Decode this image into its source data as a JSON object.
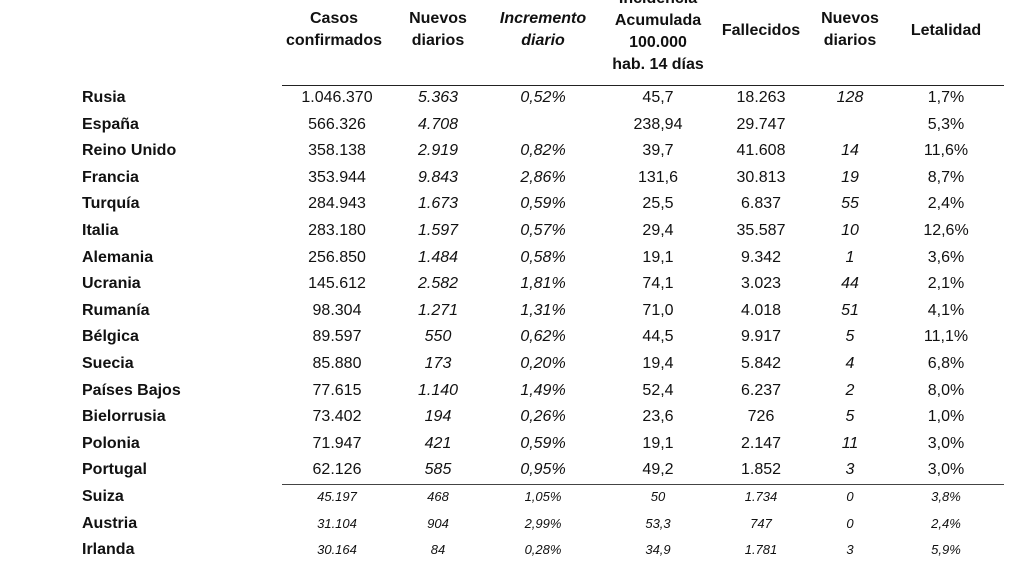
{
  "table": {
    "headers": {
      "casos": [
        "Casos",
        "confirmados"
      ],
      "nuevos": [
        "Nuevos",
        "diarios"
      ],
      "incremento": [
        "Incremento",
        "diario"
      ],
      "incidencia": [
        "Incidencia",
        "Acumulada",
        "100.000",
        "hab. 14 días"
      ],
      "fallecidos": [
        "Fallecidos"
      ],
      "nuevos_fallecidos": [
        "Nuevos",
        "diarios"
      ],
      "letalidad": [
        "Letalidad"
      ]
    },
    "rows": [
      {
        "country": "Rusia",
        "casos": "1.046.370",
        "nuevos": "5.363",
        "incremento": "0,52%",
        "incidencia": "45,7",
        "fallecidos": "18.263",
        "nuevos_fallecidos": "128",
        "letalidad": "1,7%"
      },
      {
        "country": "España",
        "casos": "566.326",
        "nuevos": "4.708",
        "incremento": "",
        "incidencia": "238,94",
        "fallecidos": "29.747",
        "nuevos_fallecidos": "",
        "letalidad": "5,3%"
      },
      {
        "country": "Reino Unido",
        "casos": "358.138",
        "nuevos": "2.919",
        "incremento": "0,82%",
        "incidencia": "39,7",
        "fallecidos": "41.608",
        "nuevos_fallecidos": "14",
        "letalidad": "11,6%"
      },
      {
        "country": "Francia",
        "casos": "353.944",
        "nuevos": "9.843",
        "incremento": "2,86%",
        "incidencia": "131,6",
        "fallecidos": "30.813",
        "nuevos_fallecidos": "19",
        "letalidad": "8,7%"
      },
      {
        "country": "Turquía",
        "casos": "284.943",
        "nuevos": "1.673",
        "incremento": "0,59%",
        "incidencia": "25,5",
        "fallecidos": "6.837",
        "nuevos_fallecidos": "55",
        "letalidad": "2,4%"
      },
      {
        "country": "Italia",
        "casos": "283.180",
        "nuevos": "1.597",
        "incremento": "0,57%",
        "incidencia": "29,4",
        "fallecidos": "35.587",
        "nuevos_fallecidos": "10",
        "letalidad": "12,6%"
      },
      {
        "country": "Alemania",
        "casos": "256.850",
        "nuevos": "1.484",
        "incremento": "0,58%",
        "incidencia": "19,1",
        "fallecidos": "9.342",
        "nuevos_fallecidos": "1",
        "letalidad": "3,6%"
      },
      {
        "country": "Ucrania",
        "casos": "145.612",
        "nuevos": "2.582",
        "incremento": "1,81%",
        "incidencia": "74,1",
        "fallecidos": "3.023",
        "nuevos_fallecidos": "44",
        "letalidad": "2,1%"
      },
      {
        "country": "Rumanía",
        "casos": "98.304",
        "nuevos": "1.271",
        "incremento": "1,31%",
        "incidencia": "71,0",
        "fallecidos": "4.018",
        "nuevos_fallecidos": "51",
        "letalidad": "4,1%"
      },
      {
        "country": "Bélgica",
        "casos": "89.597",
        "nuevos": "550",
        "incremento": "0,62%",
        "incidencia": "44,5",
        "fallecidos": "9.917",
        "nuevos_fallecidos": "5",
        "letalidad": "11,1%"
      },
      {
        "country": "Suecia",
        "casos": "85.880",
        "nuevos": "173",
        "incremento": "0,20%",
        "incidencia": "19,4",
        "fallecidos": "5.842",
        "nuevos_fallecidos": "4",
        "letalidad": "6,8%"
      },
      {
        "country": "Países Bajos",
        "casos": "77.615",
        "nuevos": "1.140",
        "incremento": "1,49%",
        "incidencia": "52,4",
        "fallecidos": "6.237",
        "nuevos_fallecidos": "2",
        "letalidad": "8,0%"
      },
      {
        "country": "Bielorrusia",
        "casos": "73.402",
        "nuevos": "194",
        "incremento": "0,26%",
        "incidencia": "23,6",
        "fallecidos": "726",
        "nuevos_fallecidos": "5",
        "letalidad": "1,0%"
      },
      {
        "country": "Polonia",
        "casos": "71.947",
        "nuevos": "421",
        "incremento": "0,59%",
        "incidencia": "19,1",
        "fallecidos": "2.147",
        "nuevos_fallecidos": "11",
        "letalidad": "3,0%"
      },
      {
        "country": "Portugal",
        "casos": "62.126",
        "nuevos": "585",
        "incremento": "0,95%",
        "incidencia": "49,2",
        "fallecidos": "1.852",
        "nuevos_fallecidos": "3",
        "letalidad": "3,0%"
      },
      {
        "country": "Suiza",
        "casos": "45.197",
        "nuevos": "468",
        "incremento": "1,05%",
        "incidencia": "50",
        "fallecidos": "1.734",
        "nuevos_fallecidos": "0",
        "letalidad": "3,8%"
      },
      {
        "country": "Austria",
        "casos": "31.104",
        "nuevos": "904",
        "incremento": "2,99%",
        "incidencia": "53,3",
        "fallecidos": "747",
        "nuevos_fallecidos": "0",
        "letalidad": "2,4%"
      },
      {
        "country": "Irlanda",
        "casos": "30.164",
        "nuevos": "84",
        "incremento": "0,28%",
        "incidencia": "34,9",
        "fallecidos": "1.781",
        "nuevos_fallecidos": "3",
        "letalidad": "5,9%"
      }
    ]
  }
}
